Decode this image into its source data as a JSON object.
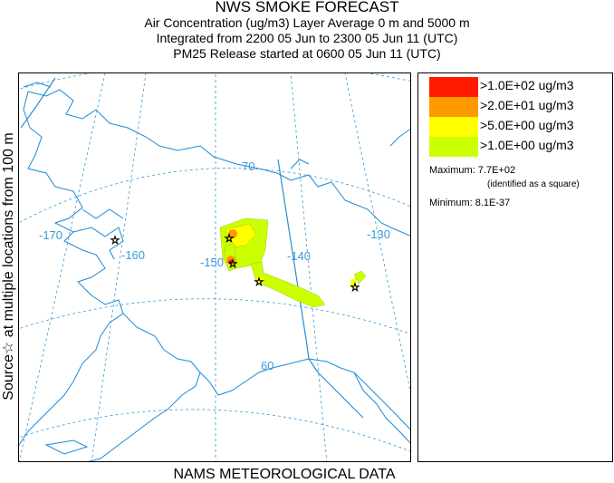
{
  "title": {
    "line1": "NWS SMOKE FORECAST",
    "line2": "Air Concentration (ug/m3) Layer Average     0 m and  5000 m",
    "line3": "Integrated from 2200 05 Jun to 2300 05 Jun 11 (UTC)",
    "line4": "PM25 Release started at 0600 05 Jun 11 (UTC)"
  },
  "side_label": "Source☆  at multiple locations   from  100 m",
  "footer": "NAMS METEOROLOGICAL DATA",
  "map": {
    "longitude_labels": [
      "-170",
      "-160",
      "-150",
      "-140",
      "-130"
    ],
    "latitude_labels": [
      "70",
      "60"
    ],
    "colors": {
      "coast": "#1a8ad6",
      "grid": "#3a9ad8",
      "border": "#2b8fd0"
    }
  },
  "legend": {
    "items": [
      {
        "label": ">1.0E+02 ug/m3",
        "color": "#ff1a00"
      },
      {
        "label": ">2.0E+01 ug/m3",
        "color": "#ff9900"
      },
      {
        "label": ">5.0E+00 ug/m3",
        "color": "#ffff00"
      },
      {
        "label": ">1.0E+00 ug/m3",
        "color": "#ccff00"
      }
    ],
    "maximum_label": "Maximum: 7.7E+02",
    "maximum_note": "(identified as a square)",
    "minimum_label": "Minimum: 8.1E-37"
  }
}
